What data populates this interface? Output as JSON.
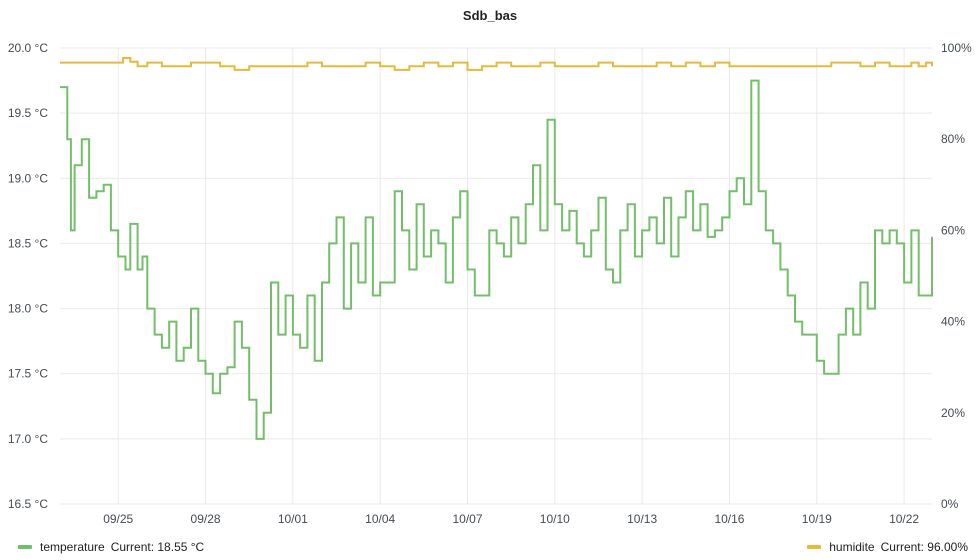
{
  "chart_data": {
    "type": "line",
    "title": "Sdb_bas",
    "x_tick_labels": [
      "09/25",
      "09/28",
      "10/01",
      "10/04",
      "10/07",
      "10/10",
      "10/13",
      "10/16",
      "10/19",
      "10/22"
    ],
    "x_range": [
      "09/23 00:00",
      "10/22 23:00"
    ],
    "y_left": {
      "ticks": [
        "16.5 °C",
        "17.0 °C",
        "17.5 °C",
        "18.0 °C",
        "18.5 °C",
        "19.0 °C",
        "19.5 °C",
        "20.0 °C"
      ],
      "ylim": [
        16.5,
        20.0
      ]
    },
    "y_right": {
      "ticks": [
        "0%",
        "20%",
        "40%",
        "60%",
        "80%",
        "100%"
      ],
      "ylim": [
        0,
        100
      ]
    },
    "grid": true,
    "legend_placement": "bottom",
    "series": [
      {
        "name": "temperature",
        "axis": "left",
        "color": "#73bf69",
        "current_label": "Current: 18.55 °C",
        "points": [
          [
            "09/23 00:00",
            19.7
          ],
          [
            "09/23 06:00",
            19.3
          ],
          [
            "09/23 09:00",
            18.6
          ],
          [
            "09/23 12:00",
            19.1
          ],
          [
            "09/23 18:00",
            19.3
          ],
          [
            "09/24 00:00",
            18.85
          ],
          [
            "09/24 06:00",
            18.9
          ],
          [
            "09/24 12:00",
            18.95
          ],
          [
            "09/24 18:00",
            18.6
          ],
          [
            "09/25 00:00",
            18.4
          ],
          [
            "09/25 06:00",
            18.3
          ],
          [
            "09/25 10:00",
            18.65
          ],
          [
            "09/25 16:00",
            18.3
          ],
          [
            "09/25 20:00",
            18.4
          ],
          [
            "09/26 00:00",
            18.0
          ],
          [
            "09/26 06:00",
            17.8
          ],
          [
            "09/26 12:00",
            17.7
          ],
          [
            "09/26 18:00",
            17.9
          ],
          [
            "09/27 00:00",
            17.6
          ],
          [
            "09/27 06:00",
            17.7
          ],
          [
            "09/27 12:00",
            18.0
          ],
          [
            "09/27 18:00",
            17.6
          ],
          [
            "09/28 00:00",
            17.5
          ],
          [
            "09/28 06:00",
            17.35
          ],
          [
            "09/28 12:00",
            17.5
          ],
          [
            "09/28 18:00",
            17.55
          ],
          [
            "09/29 00:00",
            17.9
          ],
          [
            "09/29 06:00",
            17.7
          ],
          [
            "09/29 12:00",
            17.3
          ],
          [
            "09/29 18:00",
            17.0
          ],
          [
            "09/30 00:00",
            17.2
          ],
          [
            "09/30 06:00",
            18.2
          ],
          [
            "09/30 12:00",
            17.8
          ],
          [
            "09/30 18:00",
            18.1
          ],
          [
            "10/01 00:00",
            17.8
          ],
          [
            "10/01 06:00",
            17.7
          ],
          [
            "10/01 12:00",
            18.1
          ],
          [
            "10/01 18:00",
            17.6
          ],
          [
            "10/02 00:00",
            18.2
          ],
          [
            "10/02 06:00",
            18.5
          ],
          [
            "10/02 12:00",
            18.7
          ],
          [
            "10/02 18:00",
            18.0
          ],
          [
            "10/03 00:00",
            18.5
          ],
          [
            "10/03 06:00",
            18.2
          ],
          [
            "10/03 12:00",
            18.7
          ],
          [
            "10/03 18:00",
            18.1
          ],
          [
            "10/04 00:00",
            18.2
          ],
          [
            "10/04 06:00",
            18.2
          ],
          [
            "10/04 12:00",
            18.9
          ],
          [
            "10/04 18:00",
            18.6
          ],
          [
            "10/05 00:00",
            18.3
          ],
          [
            "10/05 06:00",
            18.8
          ],
          [
            "10/05 12:00",
            18.4
          ],
          [
            "10/05 18:00",
            18.6
          ],
          [
            "10/06 00:00",
            18.5
          ],
          [
            "10/06 06:00",
            18.2
          ],
          [
            "10/06 12:00",
            18.7
          ],
          [
            "10/06 18:00",
            18.9
          ],
          [
            "10/07 00:00",
            18.3
          ],
          [
            "10/07 06:00",
            18.1
          ],
          [
            "10/07 12:00",
            18.1
          ],
          [
            "10/07 18:00",
            18.6
          ],
          [
            "10/08 00:00",
            18.5
          ],
          [
            "10/08 06:00",
            18.4
          ],
          [
            "10/08 12:00",
            18.7
          ],
          [
            "10/08 18:00",
            18.5
          ],
          [
            "10/09 00:00",
            18.8
          ],
          [
            "10/09 06:00",
            19.1
          ],
          [
            "10/09 12:00",
            18.6
          ],
          [
            "10/09 18:00",
            19.45
          ],
          [
            "10/10 00:00",
            18.8
          ],
          [
            "10/10 06:00",
            18.6
          ],
          [
            "10/10 12:00",
            18.75
          ],
          [
            "10/10 18:00",
            18.5
          ],
          [
            "10/11 00:00",
            18.4
          ],
          [
            "10/11 06:00",
            18.6
          ],
          [
            "10/11 12:00",
            18.85
          ],
          [
            "10/11 18:00",
            18.3
          ],
          [
            "10/12 00:00",
            18.2
          ],
          [
            "10/12 06:00",
            18.6
          ],
          [
            "10/12 12:00",
            18.8
          ],
          [
            "10/12 18:00",
            18.4
          ],
          [
            "10/13 00:00",
            18.6
          ],
          [
            "10/13 06:00",
            18.7
          ],
          [
            "10/13 12:00",
            18.5
          ],
          [
            "10/13 18:00",
            18.85
          ],
          [
            "10/14 00:00",
            18.4
          ],
          [
            "10/14 06:00",
            18.7
          ],
          [
            "10/14 12:00",
            18.9
          ],
          [
            "10/14 18:00",
            18.6
          ],
          [
            "10/15 00:00",
            18.8
          ],
          [
            "10/15 06:00",
            18.55
          ],
          [
            "10/15 12:00",
            18.6
          ],
          [
            "10/15 18:00",
            18.7
          ],
          [
            "10/16 00:00",
            18.9
          ],
          [
            "10/16 06:00",
            19.0
          ],
          [
            "10/16 12:00",
            18.8
          ],
          [
            "10/16 18:00",
            19.75
          ],
          [
            "10/17 00:00",
            18.9
          ],
          [
            "10/17 06:00",
            18.6
          ],
          [
            "10/17 12:00",
            18.5
          ],
          [
            "10/17 18:00",
            18.3
          ],
          [
            "10/18 00:00",
            18.1
          ],
          [
            "10/18 06:00",
            17.9
          ],
          [
            "10/18 12:00",
            17.8
          ],
          [
            "10/18 18:00",
            17.8
          ],
          [
            "10/19 00:00",
            17.6
          ],
          [
            "10/19 06:00",
            17.5
          ],
          [
            "10/19 12:00",
            17.5
          ],
          [
            "10/19 18:00",
            17.8
          ],
          [
            "10/20 00:00",
            18.0
          ],
          [
            "10/20 06:00",
            17.8
          ],
          [
            "10/20 12:00",
            18.2
          ],
          [
            "10/20 18:00",
            18.0
          ],
          [
            "10/21 00:00",
            18.6
          ],
          [
            "10/21 06:00",
            18.5
          ],
          [
            "10/21 12:00",
            18.6
          ],
          [
            "10/21 18:00",
            18.5
          ],
          [
            "10/22 00:00",
            18.2
          ],
          [
            "10/22 06:00",
            18.6
          ],
          [
            "10/22 12:00",
            18.1
          ],
          [
            "10/22 23:00",
            18.55
          ]
        ]
      },
      {
        "name": "humidite",
        "axis": "right",
        "color": "#eab839",
        "current_label": "Current: 96.00%",
        "points": [
          [
            "09/23 00:00",
            96.8
          ],
          [
            "09/24 12:00",
            96.8
          ],
          [
            "09/25 00:00",
            96.8
          ],
          [
            "09/25 04:00",
            97.8
          ],
          [
            "09/25 10:00",
            97.0
          ],
          [
            "09/25 16:00",
            96.0
          ],
          [
            "09/26 00:00",
            96.8
          ],
          [
            "09/26 12:00",
            96.0
          ],
          [
            "09/27 00:00",
            96.0
          ],
          [
            "09/27 12:00",
            96.8
          ],
          [
            "09/28 00:00",
            96.8
          ],
          [
            "09/28 12:00",
            96.0
          ],
          [
            "09/29 00:00",
            95.2
          ],
          [
            "09/29 12:00",
            96.0
          ],
          [
            "09/30 00:00",
            96.0
          ],
          [
            "09/30 12:00",
            96.0
          ],
          [
            "10/01 00:00",
            96.0
          ],
          [
            "10/01 12:00",
            96.8
          ],
          [
            "10/02 00:00",
            96.0
          ],
          [
            "10/02 12:00",
            96.0
          ],
          [
            "10/03 00:00",
            96.0
          ],
          [
            "10/03 12:00",
            96.8
          ],
          [
            "10/04 00:00",
            96.0
          ],
          [
            "10/04 12:00",
            95.2
          ],
          [
            "10/05 00:00",
            96.0
          ],
          [
            "10/05 12:00",
            96.8
          ],
          [
            "10/06 00:00",
            96.0
          ],
          [
            "10/06 12:00",
            96.8
          ],
          [
            "10/07 00:00",
            95.2
          ],
          [
            "10/07 12:00",
            96.0
          ],
          [
            "10/08 00:00",
            96.8
          ],
          [
            "10/08 12:00",
            96.0
          ],
          [
            "10/09 00:00",
            96.0
          ],
          [
            "10/09 12:00",
            96.8
          ],
          [
            "10/10 00:00",
            96.0
          ],
          [
            "10/10 12:00",
            96.0
          ],
          [
            "10/11 00:00",
            96.0
          ],
          [
            "10/11 12:00",
            96.8
          ],
          [
            "10/12 00:00",
            96.0
          ],
          [
            "10/12 12:00",
            96.0
          ],
          [
            "10/13 00:00",
            96.0
          ],
          [
            "10/13 12:00",
            96.8
          ],
          [
            "10/14 00:00",
            96.0
          ],
          [
            "10/14 12:00",
            96.8
          ],
          [
            "10/15 00:00",
            96.0
          ],
          [
            "10/15 12:00",
            96.8
          ],
          [
            "10/16 00:00",
            96.0
          ],
          [
            "10/16 12:00",
            96.0
          ],
          [
            "10/17 00:00",
            96.0
          ],
          [
            "10/17 12:00",
            96.0
          ],
          [
            "10/18 00:00",
            96.0
          ],
          [
            "10/18 12:00",
            96.0
          ],
          [
            "10/19 00:00",
            96.0
          ],
          [
            "10/19 12:00",
            96.8
          ],
          [
            "10/20 00:00",
            96.8
          ],
          [
            "10/20 12:00",
            96.0
          ],
          [
            "10/21 00:00",
            96.8
          ],
          [
            "10/21 12:00",
            96.0
          ],
          [
            "10/22 00:00",
            96.0
          ],
          [
            "10/22 06:00",
            96.8
          ],
          [
            "10/22 12:00",
            96.0
          ],
          [
            "10/22 18:00",
            96.8
          ],
          [
            "10/22 23:00",
            96.0
          ]
        ]
      }
    ]
  }
}
